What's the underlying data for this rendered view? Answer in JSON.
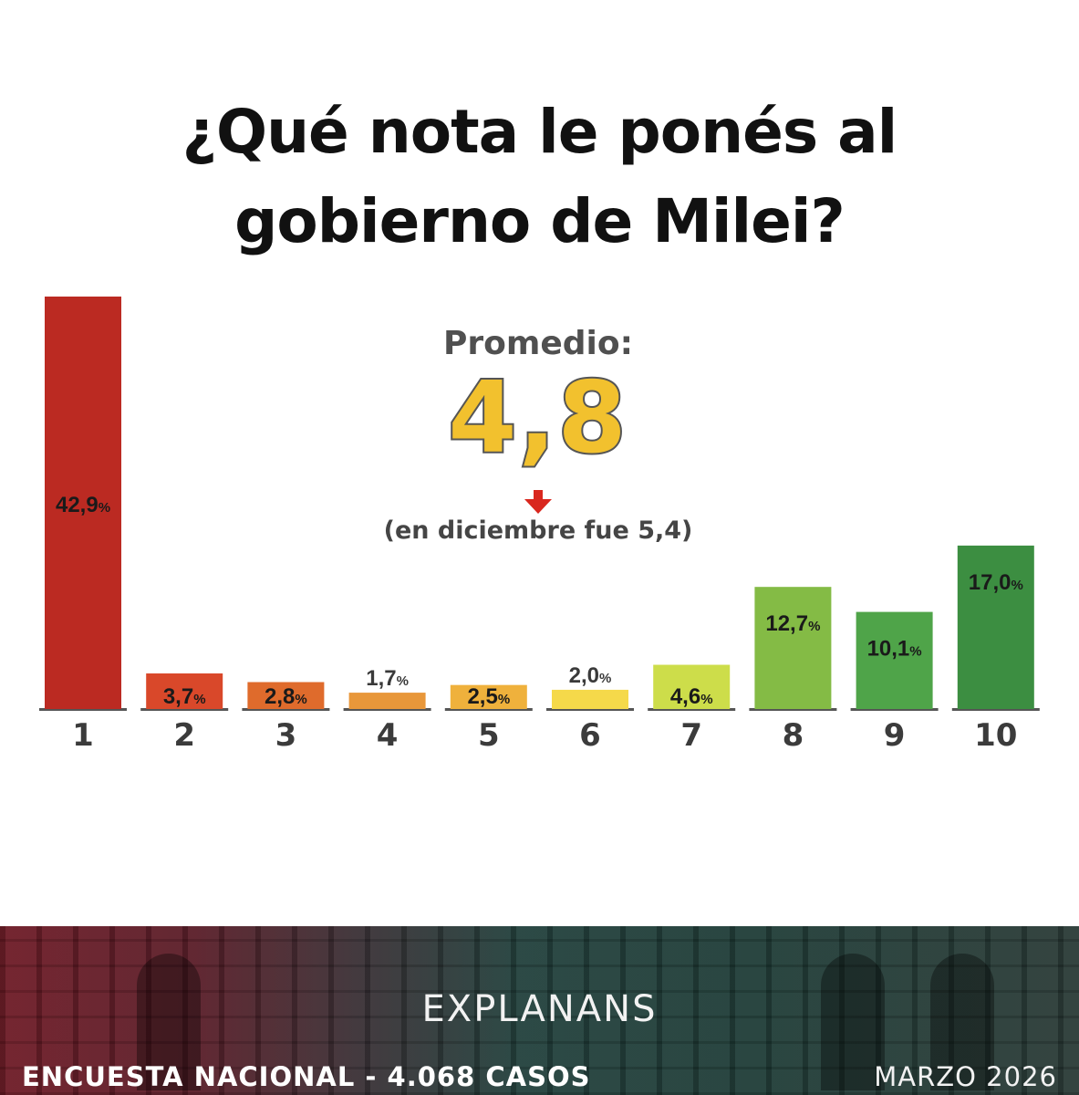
{
  "title": {
    "line1": "¿Qué nota le ponés al",
    "line2": "gobierno de Milei?"
  },
  "average": {
    "label": "Promedio:",
    "value": "4,8",
    "previous": "(en diciembre fue 5,4)",
    "trend_icon": "arrow-down-icon",
    "trend_color": "#d9271e"
  },
  "chart_data": {
    "type": "bar",
    "title": "¿Qué nota le ponés al gobierno de Milei?",
    "xlabel": "",
    "ylabel": "",
    "ylim": [
      0,
      42.9
    ],
    "categories": [
      "1",
      "2",
      "3",
      "4",
      "5",
      "6",
      "7",
      "8",
      "9",
      "10"
    ],
    "values": [
      42.9,
      3.7,
      2.8,
      1.7,
      2.5,
      2.0,
      4.6,
      12.7,
      10.1,
      17.0
    ],
    "value_labels": [
      "42,9",
      "3,7",
      "2,8",
      "1,7",
      "2,5",
      "2,0",
      "4,6",
      "12,7",
      "10,1",
      "17,0"
    ],
    "unit": "%",
    "colors": [
      "#bb2a22",
      "#d9482a",
      "#df6b2c",
      "#e8973a",
      "#efb13c",
      "#f5d94a",
      "#cddd4a",
      "#84bb45",
      "#4fa449",
      "#3c8e41"
    ],
    "grid": false,
    "legend": "none"
  },
  "footer": {
    "brand": "EXPLANANS",
    "survey": "ENCUESTA NACIONAL - 4.068 CASOS",
    "date": "MARZO 2026"
  }
}
